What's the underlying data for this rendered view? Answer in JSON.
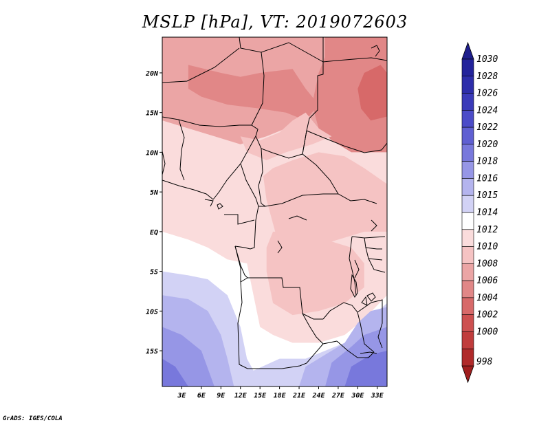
{
  "title": "MSLP [hPa], VT: 2019072603",
  "credit": "GrADS: IGES/COLA",
  "map": {
    "lon_range": [
      0,
      34.5
    ],
    "lat_range": [
      -19.5,
      24.5
    ],
    "lon_ticks": [
      {
        "value": 3,
        "label": "3E"
      },
      {
        "value": 6,
        "label": "6E"
      },
      {
        "value": 9,
        "label": "9E"
      },
      {
        "value": 12,
        "label": "12E"
      },
      {
        "value": 15,
        "label": "15E"
      },
      {
        "value": 18,
        "label": "18E"
      },
      {
        "value": 21,
        "label": "21E"
      },
      {
        "value": 24,
        "label": "24E"
      },
      {
        "value": 27,
        "label": "27E"
      },
      {
        "value": 30,
        "label": "30E"
      },
      {
        "value": 33,
        "label": "33E"
      }
    ],
    "lat_ticks": [
      {
        "value": 20,
        "label": "20N"
      },
      {
        "value": 15,
        "label": "15N"
      },
      {
        "value": 10,
        "label": "10N"
      },
      {
        "value": 5,
        "label": "5N"
      },
      {
        "value": 0,
        "label": "EQ"
      },
      {
        "value": -5,
        "label": "5S"
      },
      {
        "value": -10,
        "label": "10S"
      },
      {
        "value": -15,
        "label": "15S"
      }
    ]
  },
  "colorbar": {
    "over_color": "#1e1e8c",
    "under_color": "#a01e1e",
    "levels": [
      {
        "label": "1030",
        "color": "#23239b"
      },
      {
        "label": "1028",
        "color": "#2d2daa"
      },
      {
        "label": "1026",
        "color": "#3a3ab9"
      },
      {
        "label": "1024",
        "color": "#4b4bc8"
      },
      {
        "label": "1022",
        "color": "#5f5fd2"
      },
      {
        "label": "1020",
        "color": "#7878dc"
      },
      {
        "label": "1018",
        "color": "#9696e6"
      },
      {
        "label": "1016",
        "color": "#b4b4ee"
      },
      {
        "label": "1015",
        "color": "#d2d2f5"
      },
      {
        "label": "1014",
        "color": "#ffffff"
      },
      {
        "label": "1012",
        "color": "#fadcdc"
      },
      {
        "label": "1010",
        "color": "#f5c3c3"
      },
      {
        "label": "1008",
        "color": "#eba5a5"
      },
      {
        "label": "1006",
        "color": "#e18787"
      },
      {
        "label": "1004",
        "color": "#d76969"
      },
      {
        "label": "1002",
        "color": "#cd5050"
      },
      {
        "label": "1000",
        "color": "#c03c3c"
      },
      {
        "label": "998",
        "color": "#b02a2a"
      }
    ]
  },
  "field_regions": [
    {
      "name": "far-north-1008",
      "color": "#e18787",
      "pts": [
        [
          0,
          24.5
        ],
        [
          10,
          24.5
        ],
        [
          9,
          23
        ],
        [
          6,
          22.5
        ],
        [
          3,
          23
        ],
        [
          0,
          23.5
        ]
      ]
    },
    {
      "name": "north-1008",
      "color": "#eba5a5",
      "pts": [
        [
          0,
          24.5
        ],
        [
          34.5,
          24.5
        ],
        [
          34.5,
          12
        ],
        [
          30,
          11
        ],
        [
          25,
          12
        ],
        [
          22,
          15
        ],
        [
          19,
          13
        ],
        [
          16,
          12
        ],
        [
          12,
          11
        ],
        [
          8,
          12
        ],
        [
          4,
          13
        ],
        [
          0,
          14
        ]
      ]
    },
    {
      "name": "ne-1006",
      "color": "#e18787",
      "pts": [
        [
          25,
          24.5
        ],
        [
          34.5,
          24.5
        ],
        [
          34.5,
          8
        ],
        [
          32,
          8.5
        ],
        [
          29,
          10
        ],
        [
          26,
          11.5
        ],
        [
          24,
          13
        ],
        [
          23,
          16
        ],
        [
          24,
          20
        ],
        [
          25,
          22
        ]
      ]
    },
    {
      "name": "sahel-1006",
      "color": "#e18787",
      "pts": [
        [
          4,
          21
        ],
        [
          9,
          20
        ],
        [
          12,
          19.5
        ],
        [
          15,
          20
        ],
        [
          20,
          20.5
        ],
        [
          22,
          18
        ],
        [
          24,
          16
        ],
        [
          22,
          14
        ],
        [
          19,
          15
        ],
        [
          15,
          15.5
        ],
        [
          10,
          16
        ],
        [
          6,
          17
        ],
        [
          4,
          18
        ]
      ]
    },
    {
      "name": "ne-core-1004",
      "color": "#d76969",
      "pts": [
        [
          31,
          20
        ],
        [
          33.5,
          21
        ],
        [
          34.5,
          20
        ],
        [
          34.5,
          14.5
        ],
        [
          32,
          14
        ],
        [
          30.5,
          15.5
        ],
        [
          30,
          18
        ]
      ]
    },
    {
      "name": "central-1012",
      "color": "#fadcdc",
      "pts": [
        [
          0,
          14
        ],
        [
          4,
          13
        ],
        [
          8,
          12
        ],
        [
          12,
          11
        ],
        [
          16,
          12
        ],
        [
          19,
          13
        ],
        [
          22,
          15
        ],
        [
          25,
          12
        ],
        [
          29,
          10
        ],
        [
          34.5,
          10
        ],
        [
          34.5,
          -2
        ],
        [
          31,
          -1
        ],
        [
          28,
          -1
        ],
        [
          24,
          0
        ],
        [
          20,
          -1
        ],
        [
          16,
          0
        ],
        [
          12,
          1
        ],
        [
          8,
          3
        ],
        [
          4,
          5
        ],
        [
          0,
          6
        ]
      ]
    },
    {
      "name": "central-1010",
      "color": "#f5c3c3",
      "pts": [
        [
          17,
          8
        ],
        [
          20,
          9
        ],
        [
          24,
          10
        ],
        [
          28,
          9.5
        ],
        [
          31,
          8
        ],
        [
          34.5,
          6
        ],
        [
          34.5,
          0
        ],
        [
          31,
          0
        ],
        [
          27,
          -1
        ],
        [
          23,
          -2
        ],
        [
          20,
          -3
        ],
        [
          18,
          -2
        ],
        [
          17,
          1
        ],
        [
          16,
          4
        ],
        [
          15.5,
          7
        ]
      ]
    },
    {
      "name": "cameroon-1010",
      "color": "#f5c3c3",
      "pts": [
        [
          12,
          12
        ],
        [
          15,
          11.5
        ],
        [
          18,
          12.5
        ],
        [
          20,
          14
        ],
        [
          22,
          15
        ],
        [
          24,
          13
        ],
        [
          26,
          12
        ],
        [
          23,
          11
        ],
        [
          19,
          10
        ],
        [
          16,
          9
        ],
        [
          13,
          10
        ]
      ]
    },
    {
      "name": "basin-1010",
      "color": "#f5c3c3",
      "pts": [
        [
          17,
          0
        ],
        [
          21,
          0
        ],
        [
          25,
          -1
        ],
        [
          29,
          -2
        ],
        [
          31,
          -4
        ],
        [
          31,
          -7
        ],
        [
          28,
          -9
        ],
        [
          24,
          -10
        ],
        [
          20,
          -10.5
        ],
        [
          17,
          -9
        ],
        [
          16,
          -5
        ],
        [
          16,
          -2
        ]
      ]
    },
    {
      "name": "south-1014",
      "color": "#ffffff",
      "pts": [
        [
          0,
          0
        ],
        [
          4,
          -1
        ],
        [
          7,
          -2
        ],
        [
          10,
          -3.5
        ],
        [
          13,
          -4
        ],
        [
          14,
          -8
        ],
        [
          15,
          -12
        ],
        [
          17,
          -13
        ],
        [
          20,
          -14
        ],
        [
          24,
          -14
        ],
        [
          28,
          -13
        ],
        [
          31,
          -11
        ],
        [
          34.5,
          -8
        ],
        [
          34.5,
          -19.5
        ],
        [
          0,
          -19.5
        ]
      ]
    },
    {
      "name": "south-1015",
      "color": "#d2d2f5",
      "pts": [
        [
          0,
          -5
        ],
        [
          4,
          -5.5
        ],
        [
          7,
          -6
        ],
        [
          10,
          -8
        ],
        [
          12,
          -12
        ],
        [
          13,
          -16
        ],
        [
          14,
          -17.5
        ],
        [
          18,
          -16
        ],
        [
          22,
          -16
        ],
        [
          25,
          -15
        ],
        [
          28,
          -14
        ],
        [
          31,
          -11.5
        ],
        [
          34.5,
          -9
        ],
        [
          34.5,
          -19.5
        ],
        [
          0,
          -19.5
        ]
      ]
    },
    {
      "name": "south-1016",
      "color": "#b4b4ee",
      "pts": [
        [
          0,
          -8
        ],
        [
          4,
          -8.5
        ],
        [
          7,
          -10
        ],
        [
          9,
          -13
        ],
        [
          10,
          -16
        ],
        [
          11,
          -19.5
        ],
        [
          0,
          -19.5
        ]
      ]
    },
    {
      "name": "south-1016-east",
      "color": "#b4b4ee",
      "pts": [
        [
          21,
          -19.5
        ],
        [
          22,
          -17
        ],
        [
          25,
          -15.5
        ],
        [
          28,
          -14
        ],
        [
          30,
          -11.5
        ],
        [
          32,
          -10
        ],
        [
          34.5,
          -9.5
        ],
        [
          34.5,
          -19.5
        ]
      ]
    },
    {
      "name": "south-1018",
      "color": "#9696e6",
      "pts": [
        [
          0,
          -12
        ],
        [
          3,
          -13
        ],
        [
          6,
          -15
        ],
        [
          8,
          -19.5
        ],
        [
          0,
          -19.5
        ]
      ]
    },
    {
      "name": "south-1018-east",
      "color": "#9696e6",
      "pts": [
        [
          25,
          -19.5
        ],
        [
          26,
          -16.5
        ],
        [
          29,
          -14.5
        ],
        [
          31,
          -13
        ],
        [
          34.5,
          -12
        ],
        [
          34.5,
          -19.5
        ]
      ]
    },
    {
      "name": "south-1020",
      "color": "#7878dc",
      "pts": [
        [
          0,
          -16
        ],
        [
          2,
          -17
        ],
        [
          4,
          -19.5
        ],
        [
          0,
          -19.5
        ]
      ]
    },
    {
      "name": "south-1020-east",
      "color": "#7878dc",
      "pts": [
        [
          28,
          -19.5
        ],
        [
          29,
          -17
        ],
        [
          32,
          -15.5
        ],
        [
          34.5,
          -15
        ],
        [
          34.5,
          -19.5
        ]
      ]
    }
  ]
}
